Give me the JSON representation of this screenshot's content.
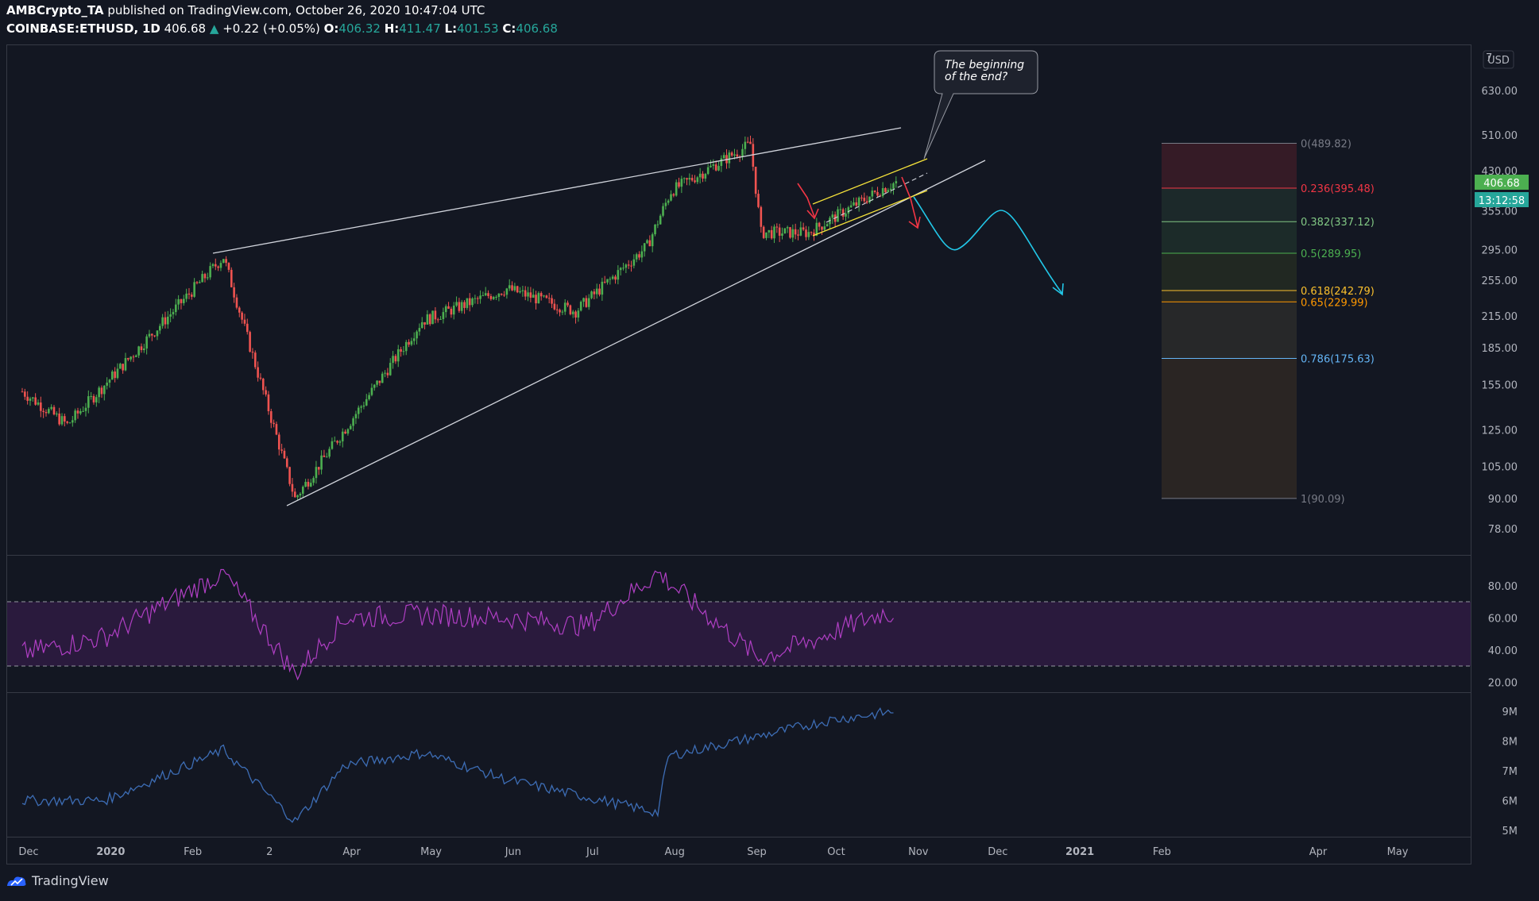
{
  "header": {
    "author": "AMBCrypto_TA",
    "published_text": "published on TradingView.com, October 26, 2020 10:47:04 UTC",
    "symbol": "COINBASE:ETHUSD,",
    "interval": "1D",
    "price": "406.68",
    "change": "+0.22 (+0.05%)",
    "o_label": "O:",
    "o": "406.32",
    "h_label": "H:",
    "h": "411.47",
    "l_label": "L:",
    "l": "401.53",
    "c_label": "C:",
    "c": "406.68"
  },
  "callout": {
    "line1": "The beginning",
    "line2": "of the end?"
  },
  "price_axis": {
    "currency": "USD",
    "ticks": [
      "630.00",
      "510.00",
      "430.00",
      "355.00",
      "295.00",
      "255.00",
      "215.00",
      "185.00",
      "155.00",
      "125.00",
      "105.00",
      "90.00",
      "78.00"
    ],
    "top_partial": "7",
    "current_price": "406.68",
    "countdown": "13:12:58"
  },
  "rsi_axis": {
    "ticks": [
      "80.00",
      "60.00",
      "40.00",
      "20.00"
    ]
  },
  "obv_axis": {
    "ticks": [
      "9M",
      "8M",
      "7M",
      "6M",
      "5M"
    ]
  },
  "time_axis": {
    "labels": [
      "Dec",
      "2020",
      "Feb",
      "2",
      "Apr",
      "May",
      "Jun",
      "Jul",
      "Aug",
      "Sep",
      "Oct",
      "Nov",
      "Dec",
      "2021",
      "Feb",
      "Apr",
      "May"
    ]
  },
  "fib_levels": [
    {
      "ratio": "0",
      "price": "(489.82)",
      "color": "#787b86"
    },
    {
      "ratio": "0.236",
      "price": "(395.48)",
      "color": "#f23645"
    },
    {
      "ratio": "0.382",
      "price": "(337.12)",
      "color": "#81c784"
    },
    {
      "ratio": "0.5",
      "price": "(289.95)",
      "color": "#4caf50"
    },
    {
      "ratio": "0.618",
      "price": "(242.79)",
      "color": "#fbc02d"
    },
    {
      "ratio": "0.65",
      "price": "(229.99)",
      "color": "#ff9800"
    },
    {
      "ratio": "0.786",
      "price": "(175.63)",
      "color": "#64b5f6"
    },
    {
      "ratio": "1",
      "price": "(90.09)",
      "color": "#787b86"
    }
  ],
  "colors": {
    "background": "#131722",
    "candle_up": "#26a69a",
    "candle_up_bright": "#4caf50",
    "candle_down": "#ef5350",
    "rsi_line": "#b03fc4",
    "rsi_band": "#2a1a3d",
    "obv_line": "#3d6db5",
    "projection": "#22c7e8",
    "channel": "#f5e23a",
    "price_badge": "#26a69a"
  },
  "footer": {
    "brand": "TradingView"
  },
  "chart_data": [
    {
      "type": "candlestick",
      "title": "COINBASE:ETHUSD, 1D",
      "x_range": [
        "2019-11-25",
        "2021-05-31"
      ],
      "ylim": [
        70,
        720
      ],
      "y_scale": "log",
      "key_points": [
        {
          "date": "2019-12-01",
          "price": 150
        },
        {
          "date": "2019-12-18",
          "price": 128
        },
        {
          "date": "2020-02-15",
          "price": 285
        },
        {
          "date": "2020-03-13",
          "price": 90
        },
        {
          "date": "2020-04-30",
          "price": 210
        },
        {
          "date": "2020-06-01",
          "price": 245
        },
        {
          "date": "2020-06-27",
          "price": 220
        },
        {
          "date": "2020-07-24",
          "price": 300
        },
        {
          "date": "2020-08-02",
          "price": 390
        },
        {
          "date": "2020-09-01",
          "price": 488
        },
        {
          "date": "2020-09-05",
          "price": 320
        },
        {
          "date": "2020-09-23",
          "price": 320
        },
        {
          "date": "2020-10-21",
          "price": 395
        },
        {
          "date": "2020-10-26",
          "price": 406.68
        }
      ],
      "projection_path": [
        {
          "date": "2020-10-26",
          "price": 395
        },
        {
          "date": "2020-11-10",
          "price": 295
        },
        {
          "date": "2020-11-25",
          "price": 350
        },
        {
          "date": "2020-12-22",
          "price": 240
        }
      ]
    },
    {
      "type": "line",
      "name": "RSI",
      "ylim": [
        15,
        90
      ],
      "bands": [
        30,
        70
      ],
      "x": [
        "2019-12",
        "2020-01",
        "2020-02-15",
        "2020-03-13",
        "2020-04",
        "2020-05",
        "2020-06",
        "2020-07",
        "2020-07-28",
        "2020-09-04",
        "2020-09-23",
        "2020-10-21",
        "2020-10-26"
      ],
      "values": [
        38,
        48,
        88,
        25,
        60,
        62,
        60,
        55,
        88,
        35,
        45,
        63,
        62
      ]
    },
    {
      "type": "line",
      "name": "OBV",
      "ylim": [
        4.8,
        9.3
      ],
      "unit": "M",
      "x": [
        "2019-12",
        "2020-01",
        "2020-02-15",
        "2020-03-13",
        "2020-04",
        "2020-05",
        "2020-06",
        "2020-07-28",
        "2020-08",
        "2020-09",
        "2020-10",
        "2020-10-26"
      ],
      "values": [
        6.0,
        6.0,
        7.7,
        5.3,
        7.2,
        7.6,
        6.7,
        5.6,
        7.5,
        8.1,
        8.7,
        9.0
      ]
    }
  ]
}
